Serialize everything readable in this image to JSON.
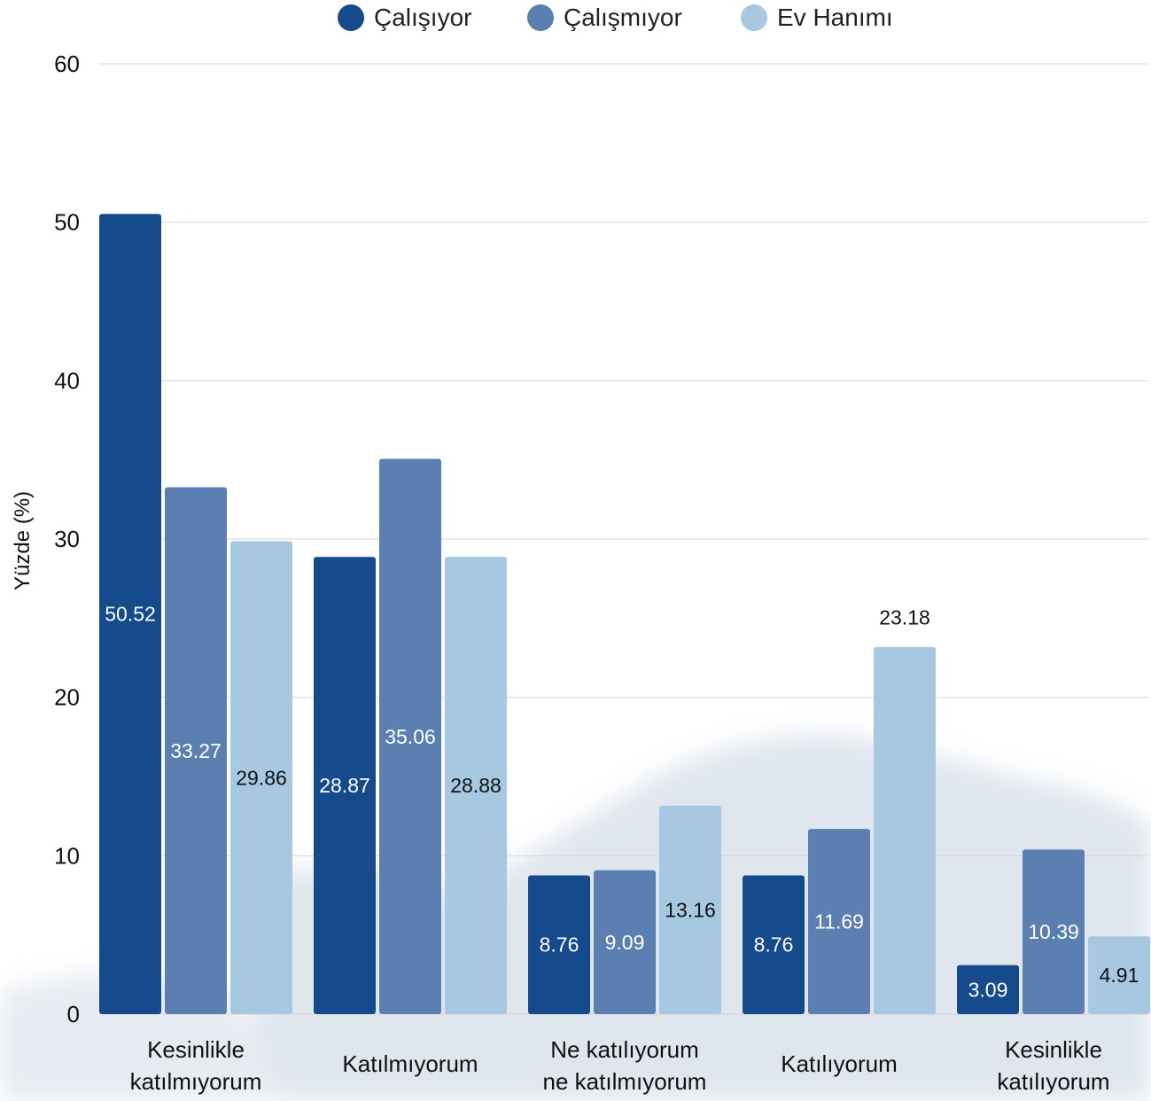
{
  "chart_data": {
    "type": "bar",
    "ylabel": "Yüzde (%)",
    "xlabel": "",
    "ylim": [
      0,
      60
    ],
    "yticks": [
      0,
      10,
      20,
      30,
      40,
      50,
      60
    ],
    "grid": true,
    "legend_position": "top-center",
    "categories": [
      [
        "Kesinlikle",
        "katılmıyorum"
      ],
      [
        "Katılmıyorum"
      ],
      [
        "Ne katılıyorum",
        "ne katılmıyorum"
      ],
      [
        "Katılıyorum"
      ],
      [
        "Kesinlikle",
        "katılıyorum"
      ]
    ],
    "series": [
      {
        "name": "Çalışıyor",
        "color": "#154a8c",
        "label_color": "#ffffff",
        "values": [
          50.52,
          28.87,
          8.76,
          8.76,
          3.09
        ]
      },
      {
        "name": "Çalışmıyor",
        "color": "#5b7fb0",
        "label_color": "#ffffff",
        "values": [
          33.27,
          35.06,
          9.09,
          11.69,
          10.39
        ]
      },
      {
        "name": "Ev Hanımı",
        "color": "#a6c8e1",
        "label_color": "#111111",
        "values": [
          29.86,
          28.88,
          13.16,
          23.18,
          4.91
        ]
      }
    ],
    "label_positions": [
      [
        0.5,
        0.5,
        0.5,
        0.5,
        0.5
      ],
      [
        0.5,
        0.5,
        0.5,
        0.5,
        0.5
      ],
      [
        0.5,
        0.5,
        0.5,
        1.08,
        0.5
      ]
    ]
  },
  "colors": {
    "grid": "#d6d6d6",
    "text": "#111111"
  }
}
